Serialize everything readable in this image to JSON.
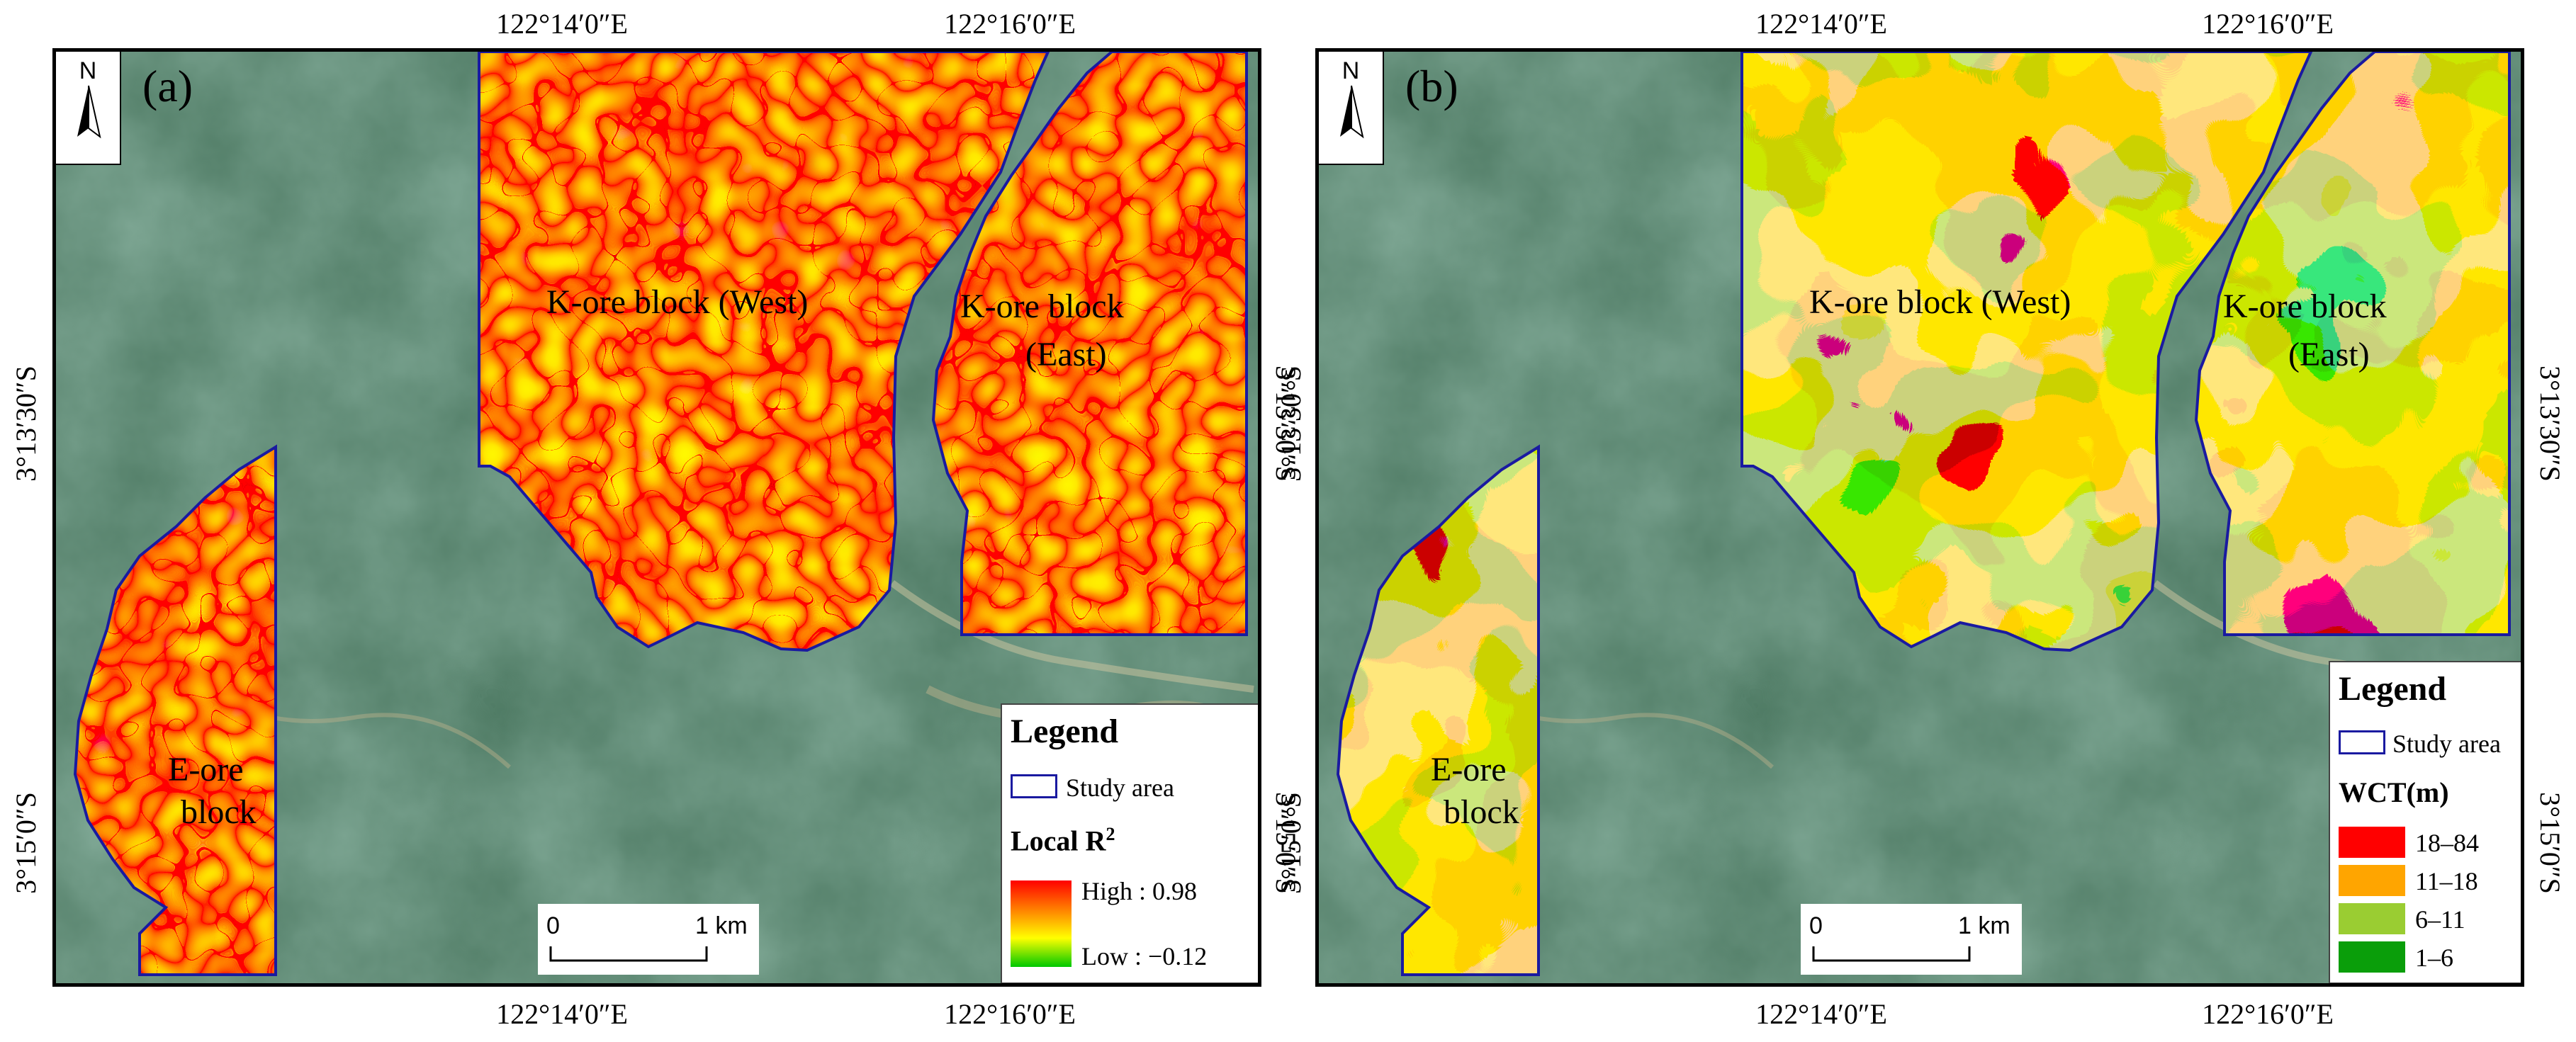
{
  "coordinates": {
    "lon_left": "122°14′0″E",
    "lon_right": "122°16′0″E",
    "lat_upper": "3°13′30″S",
    "lat_lower": "3°15′0″S"
  },
  "north_arrow": {
    "label": "N"
  },
  "scale_bar": {
    "start": "0",
    "end": "1 km"
  },
  "block_labels": {
    "west": "K-ore block (West)",
    "east_line1": "K-ore block",
    "east_line2": "(East)",
    "e_line1": "E-ore",
    "e_line2": "block"
  },
  "panel_a": {
    "letter": "(a)",
    "legend": {
      "title": "Legend",
      "study_area": "Study area",
      "variable": "Local R",
      "variable_sup": "2",
      "high_label": "High : 0.98",
      "low_label": "Low : −0.12",
      "high_value": 0.98,
      "low_value": -0.12,
      "ramp_colors": [
        "#ff0000",
        "#ff7f00",
        "#ffff00",
        "#00c800"
      ]
    }
  },
  "panel_b": {
    "letter": "(b)",
    "legend": {
      "title": "Legend",
      "study_area": "Study area",
      "variable": "WCT(m)",
      "classes": [
        {
          "label": "18–84",
          "color": "#ff0000"
        },
        {
          "label": "11–18",
          "color": "#ffa500"
        },
        {
          "label": "6–11",
          "color": "#9acd32"
        },
        {
          "label": "1–6",
          "color": "#0a9e0a"
        }
      ]
    }
  },
  "colors": {
    "boundary": "#1a1aa0",
    "basemap": "#3e6b53"
  }
}
